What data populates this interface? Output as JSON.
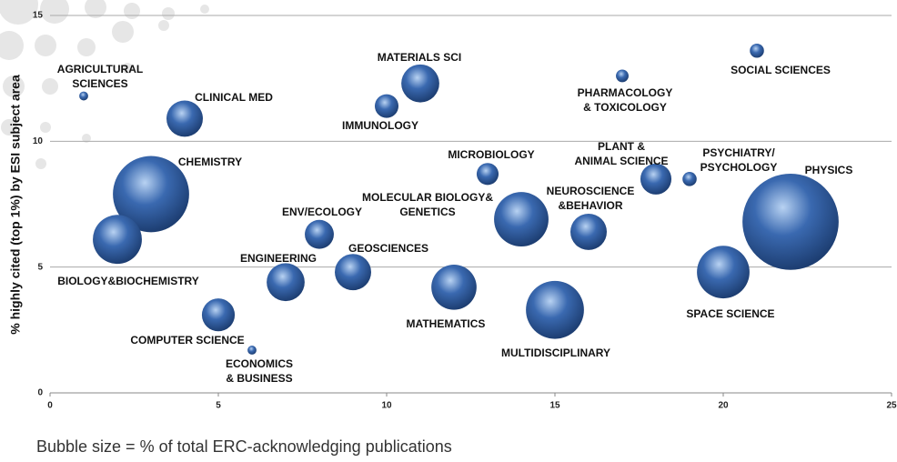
{
  "chart_data": {
    "type": "bubble",
    "ylabel": "% highly cited (top 1%) by ESI subject area",
    "note": "Bubble size = % of total ERC-acknowledging publications",
    "xlim": [
      0,
      25
    ],
    "xticks": [
      0,
      5,
      10,
      15,
      20,
      25
    ],
    "ylim": [
      0,
      15
    ],
    "yticks": [
      0,
      5,
      10,
      15
    ],
    "grid": true,
    "color": "#3a69b0",
    "labels": [
      [
        "AGRICULTURAL",
        "SCIENCES"
      ],
      [
        "CLINICAL MED"
      ],
      [
        "CHEMISTRY"
      ],
      [
        "BIOLOGY&BIOCHEMISTRY"
      ],
      [
        "COMPUTER SCIENCE"
      ],
      [
        "ECONOMICS",
        "& BUSINESS"
      ],
      [
        "ENGINEERING"
      ],
      [
        "ENV/ECOLOGY"
      ],
      [
        "GEOSCIENCES"
      ],
      [
        "IMMUNOLOGY"
      ],
      [
        "MATERIALS SCI"
      ],
      [
        "MATHEMATICS"
      ],
      [
        "MICROBIOLOGY"
      ],
      [
        "MOLECULAR BIOLOGY&",
        "GENETICS"
      ],
      [
        "MULTIDISCIPLINARY"
      ],
      [
        "NEUROSCIENCE",
        "&BEHAVIOR"
      ],
      [
        "PHARMACOLOGY",
        "& TOXICOLOGY"
      ],
      [
        "PLANT &",
        "ANIMAL SCIENCE"
      ],
      [
        "PSYCHIATRY/",
        "PSYCHOLOGY"
      ],
      [
        "SPACE SCIENCE"
      ],
      [
        "SOCIAL SCIENCES"
      ],
      [
        "PHYSICS"
      ]
    ],
    "x": [
      1,
      4,
      3,
      2,
      5,
      6,
      7,
      8,
      9,
      10,
      11,
      12,
      13,
      14,
      15,
      16,
      17,
      18,
      19,
      20,
      21,
      22
    ],
    "values": [
      11.8,
      10.9,
      7.9,
      6.1,
      3.1,
      1.7,
      4.4,
      6.3,
      4.8,
      11.4,
      12.3,
      4.2,
      8.7,
      6.9,
      3.3,
      6.4,
      12.6,
      8.5,
      8.5,
      4.8,
      13.6,
      6.8
    ],
    "sizes": [
      0.2,
      3.3,
      14.5,
      6.0,
      2.7,
      0.2,
      3.6,
      2.1,
      3.3,
      1.4,
      3.6,
      5.1,
      1.2,
      7.4,
      8.4,
      3.3,
      0.4,
      2.4,
      0.5,
      6.9,
      0.5,
      23.1
    ]
  }
}
